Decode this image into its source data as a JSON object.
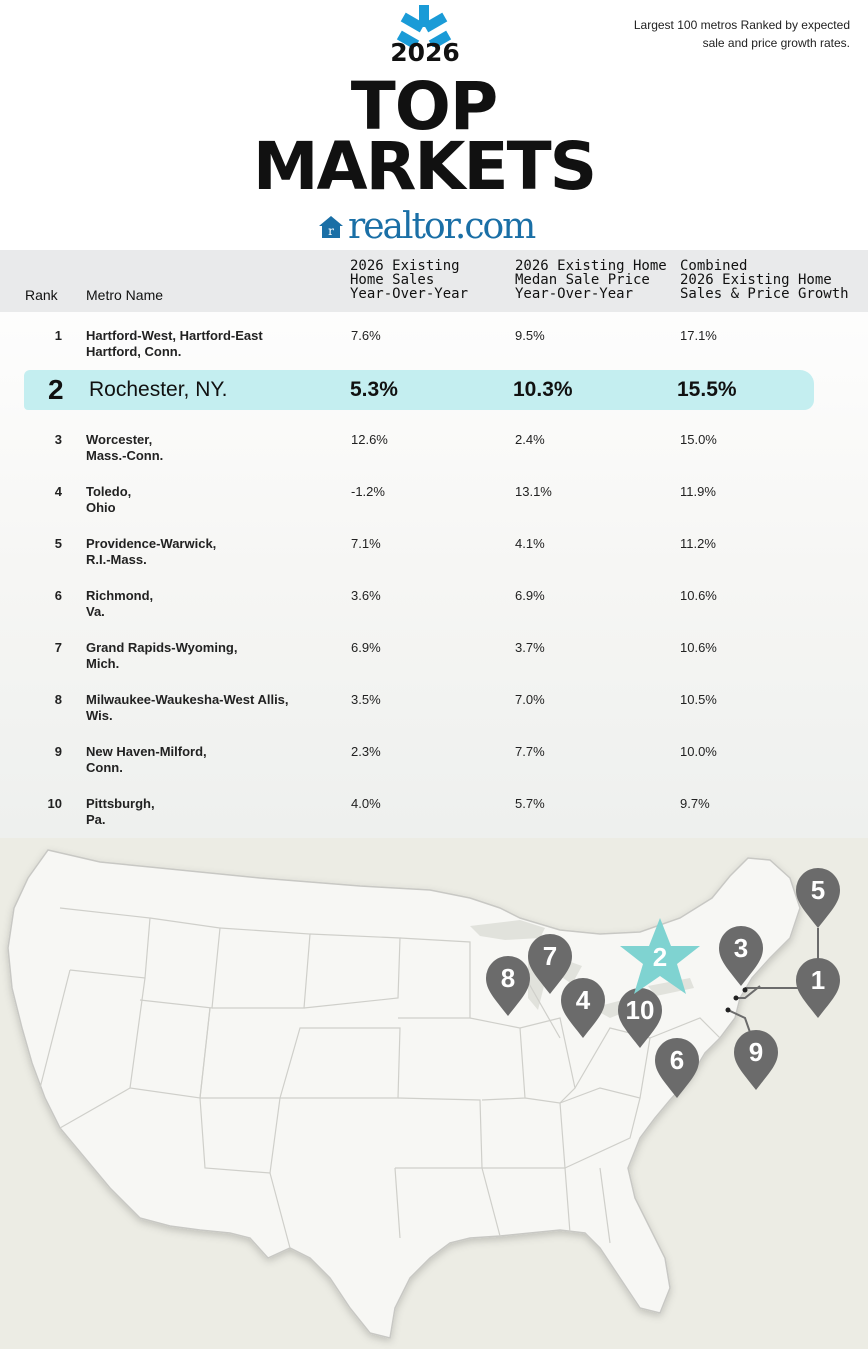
{
  "header": {
    "year": "2026",
    "title_line1": "TOP",
    "title_line2": "MARKETS",
    "brand": "realtor.com",
    "note": "Largest 100 metros Ranked by expected sale and price growth rates."
  },
  "table": {
    "columns": {
      "rank": "Rank",
      "metro": "Metro Name",
      "c1": [
        "2026 Existing",
        "Home Sales",
        "Year-Over-Year"
      ],
      "c2": [
        "2026 Existing Home",
        "Medan Sale Price",
        "Year-Over-Year"
      ],
      "c3": [
        "Combined",
        "2026 Existing Home",
        "Sales & Price Growth"
      ]
    },
    "rows": [
      {
        "rank": "1",
        "metro": [
          "Hartford-West, Hartford-East",
          "Hartford, Conn."
        ],
        "sales": "7.6%",
        "price": "9.5%",
        "combined": "17.1%"
      },
      {
        "rank": "2",
        "metro": [
          "Rochester, NY."
        ],
        "sales": "5.3%",
        "price": "10.3%",
        "combined": "15.5%"
      },
      {
        "rank": "3",
        "metro": [
          "Worcester,",
          "Mass.-Conn."
        ],
        "sales": "12.6%",
        "price": "2.4%",
        "combined": "15.0%"
      },
      {
        "rank": "4",
        "metro": [
          "Toledo,",
          "Ohio"
        ],
        "sales": "-1.2%",
        "price": "13.1%",
        "combined": "11.9%"
      },
      {
        "rank": "5",
        "metro": [
          "Providence-Warwick,",
          "R.I.-Mass."
        ],
        "sales": "7.1%",
        "price": "4.1%",
        "combined": "11.2%"
      },
      {
        "rank": "6",
        "metro": [
          "Richmond,",
          "Va."
        ],
        "sales": "3.6%",
        "price": "6.9%",
        "combined": "10.6%"
      },
      {
        "rank": "7",
        "metro": [
          "Grand Rapids-Wyoming,",
          "Mich."
        ],
        "sales": "6.9%",
        "price": "3.7%",
        "combined": "10.6%"
      },
      {
        "rank": "8",
        "metro": [
          "Milwaukee-Waukesha-West Allis,",
          "Wis."
        ],
        "sales": "3.5%",
        "price": "7.0%",
        "combined": "10.5%"
      },
      {
        "rank": "9",
        "metro": [
          "New Haven-Milford,",
          "Conn."
        ],
        "sales": "2.3%",
        "price": "7.7%",
        "combined": "10.0%"
      },
      {
        "rank": "10",
        "metro": [
          "Pittsburgh,",
          "Pa."
        ],
        "sales": "4.0%",
        "price": "5.7%",
        "combined": "9.7%"
      }
    ]
  },
  "map": {
    "pins": [
      "1",
      "3",
      "4",
      "5",
      "6",
      "7",
      "8",
      "9",
      "10"
    ],
    "star": "2"
  },
  "colors": {
    "brand_blue": "#1a9bd7",
    "highlight": "#c4eef0",
    "pin": "#6b6b6b",
    "star": "#7fd3d1",
    "land": "#f7f7f4"
  }
}
